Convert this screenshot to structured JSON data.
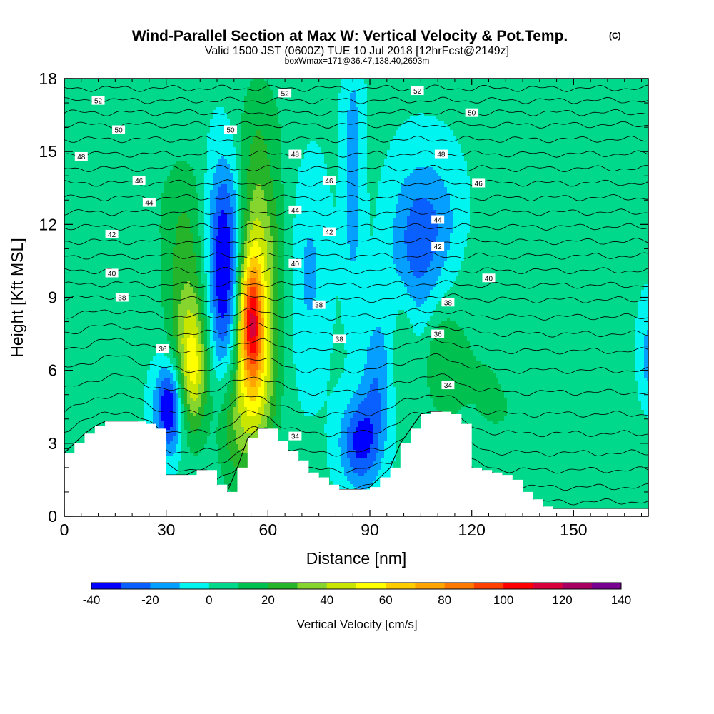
{
  "figure": {
    "title": "Wind-Parallel Section at Max W: Vertical Velocity & Pot.Temp.",
    "title_mark": "(C)",
    "subtitle": "Valid 1500 JST (0600Z) TUE 10 Jul 2018 [12hrFcst@2149z]",
    "subtitle2": "boxWmax=171@36.47,138.40,2693m"
  },
  "colors": {
    "background": "#ffffff",
    "terrain": "#ffffff",
    "contour": "#000000",
    "palette": [
      "#0000ff",
      "#0a5fff",
      "#05a0ff",
      "#00f4f0",
      "#00d88c",
      "#00c050",
      "#26b42a",
      "#86d42e",
      "#c8e600",
      "#ffff00",
      "#ffcc00",
      "#ffa500",
      "#ff7800",
      "#ff4000",
      "#ff0000",
      "#d8003a",
      "#a80060",
      "#780090"
    ]
  },
  "chart_data": {
    "type": "heatmap",
    "xlabel": "Distance [nm]",
    "ylabel": "Height [Kft MSL]",
    "xlim": [
      0,
      172
    ],
    "ylim": [
      0,
      18
    ],
    "xticks": [
      0,
      30,
      60,
      90,
      120,
      150
    ],
    "yticks": [
      0,
      3,
      6,
      9,
      12,
      15,
      18
    ],
    "fill_variable": "Vertical Velocity [cm/s]",
    "contour_variable": "Potential temperature",
    "colorbar": {
      "title": "Vertical Velocity [cm/s]",
      "levels": [
        -40,
        -30,
        -20,
        -10,
        0,
        10,
        20,
        30,
        40,
        50,
        60,
        70,
        80,
        90,
        100,
        110,
        120,
        130,
        140
      ],
      "tick_labels": [
        "-40",
        "-20",
        "0",
        "20",
        "40",
        "60",
        "80",
        "100",
        "120",
        "140"
      ],
      "tick_values": [
        -40,
        -20,
        0,
        20,
        40,
        60,
        80,
        100,
        120,
        140
      ]
    },
    "background_velocity": 2,
    "velocity_cells": [
      {
        "x": 36,
        "y": 8,
        "sx": 4.5,
        "sy": 2.8,
        "v": 24
      },
      {
        "x": 38,
        "y": 6,
        "sx": 3,
        "sy": 1.8,
        "v": 38
      },
      {
        "x": 35,
        "y": 12.5,
        "sx": 6,
        "sy": 2,
        "v": 12
      },
      {
        "x": 31,
        "y": 4.5,
        "sx": 3,
        "sy": 1.3,
        "v": -48
      },
      {
        "x": 47,
        "y": 9.5,
        "sx": 3.5,
        "sy": 3,
        "v": -42
      },
      {
        "x": 48,
        "y": 12.5,
        "sx": 5,
        "sy": 2,
        "v": -12
      },
      {
        "x": 56,
        "y": 9,
        "sx": 4,
        "sy": 4.2,
        "v": 48
      },
      {
        "x": 55,
        "y": 8,
        "sx": 2.3,
        "sy": 1.6,
        "v": 60
      },
      {
        "x": 58,
        "y": 5.5,
        "sx": 4,
        "sy": 2,
        "v": 18
      },
      {
        "x": 50,
        "y": 4,
        "sx": 4,
        "sy": 2,
        "v": 24
      },
      {
        "x": 62,
        "y": 11,
        "sx": 4,
        "sy": 2,
        "v": 10
      },
      {
        "x": 72,
        "y": 10,
        "sx": 4,
        "sy": 3,
        "v": -14
      },
      {
        "x": 85,
        "y": 14,
        "sx": 2,
        "sy": 3.5,
        "v": -20
      },
      {
        "x": 87,
        "y": 3,
        "sx": 4,
        "sy": 1.3,
        "v": -35
      },
      {
        "x": 92,
        "y": 5.5,
        "sx": 3,
        "sy": 2,
        "v": -20
      },
      {
        "x": 100,
        "y": 7.5,
        "sx": 2.5,
        "sy": 2,
        "v": 14
      },
      {
        "x": 102,
        "y": 10.5,
        "sx": 5,
        "sy": 2.5,
        "v": -20
      },
      {
        "x": 109,
        "y": 12,
        "sx": 6,
        "sy": 2,
        "v": -18
      },
      {
        "x": 111,
        "y": 6.5,
        "sx": 4,
        "sy": 1.5,
        "v": 16
      },
      {
        "x": 123,
        "y": 8,
        "sx": 8,
        "sy": 3,
        "v": 6
      },
      {
        "x": 130,
        "y": 4,
        "sx": 14,
        "sy": 2,
        "v": 6
      },
      {
        "x": 158,
        "y": 2.5,
        "sx": 12,
        "sy": 2,
        "v": 5
      },
      {
        "x": 150,
        "y": 13,
        "sx": 6,
        "sy": 4,
        "v": 6
      },
      {
        "x": 60,
        "y": 16,
        "sx": 6,
        "sy": 2,
        "v": 7
      },
      {
        "x": 172,
        "y": 6.5,
        "sx": 2,
        "sy": 1.5,
        "v": -16
      }
    ],
    "terrain": {
      "x": [
        0,
        3,
        6,
        9,
        12,
        15,
        18,
        21,
        24,
        27,
        30,
        33,
        36,
        39,
        42,
        45,
        48,
        51,
        54,
        57,
        60,
        63,
        66,
        69,
        72,
        75,
        78,
        81,
        84,
        87,
        90,
        93,
        96,
        99,
        102,
        105,
        108,
        111,
        114,
        117,
        120,
        123,
        126,
        129,
        132,
        135,
        138,
        141,
        144,
        147,
        150,
        153,
        156,
        159,
        162,
        165,
        168,
        172
      ],
      "height": [
        2.6,
        3.0,
        3.4,
        3.7,
        3.9,
        3.9,
        3.9,
        3.9,
        3.8,
        3.6,
        1.7,
        1.7,
        1.7,
        1.9,
        1.9,
        1.3,
        1.0,
        2.0,
        3.2,
        3.6,
        3.6,
        3.1,
        2.7,
        2.3,
        1.8,
        1.6,
        1.3,
        1.1,
        1.1,
        1.1,
        1.2,
        1.6,
        2.0,
        3.0,
        3.6,
        4.2,
        4.3,
        4.3,
        4.2,
        3.8,
        2.0,
        1.9,
        1.8,
        1.7,
        1.5,
        1.0,
        0.7,
        0.4,
        0.3,
        0.3,
        0.3,
        0.3,
        0.3,
        0.3,
        0.3,
        0.3,
        0.3,
        0.3
      ]
    },
    "isentropes": [
      {
        "base": 0.0
      },
      {
        "base": 0.6
      },
      {
        "base": 1.2
      },
      {
        "base": 1.9
      },
      {
        "base": 2.6
      },
      {
        "base": 3.4
      },
      {
        "base": 4.2,
        "label": "34"
      },
      {
        "base": 5.1
      },
      {
        "base": 6.0,
        "label": "36"
      },
      {
        "base": 6.8
      },
      {
        "base": 7.5,
        "label": "38"
      },
      {
        "base": 8.2
      },
      {
        "base": 8.9,
        "label": "38"
      },
      {
        "base": 9.5
      },
      {
        "base": 10.1,
        "label": "40"
      },
      {
        "base": 10.7
      },
      {
        "base": 11.3,
        "label": "42"
      },
      {
        "base": 11.9
      },
      {
        "base": 12.5,
        "label": "44"
      },
      {
        "base": 13.1
      },
      {
        "base": 13.7,
        "label": "46"
      },
      {
        "base": 14.3
      },
      {
        "base": 14.9,
        "label": "48"
      },
      {
        "base": 15.5
      },
      {
        "base": 16.1,
        "label": "50"
      },
      {
        "base": 16.6
      },
      {
        "base": 17.1,
        "label": "52"
      },
      {
        "base": 17.6
      }
    ],
    "contour_labels": [
      {
        "x": 10,
        "y": 17.1,
        "text": "52"
      },
      {
        "x": 65,
        "y": 17.4,
        "text": "52"
      },
      {
        "x": 104,
        "y": 17.5,
        "text": "52"
      },
      {
        "x": 16,
        "y": 15.9,
        "text": "50"
      },
      {
        "x": 49,
        "y": 15.9,
        "text": "50"
      },
      {
        "x": 120,
        "y": 16.6,
        "text": "50"
      },
      {
        "x": 5,
        "y": 14.8,
        "text": "48"
      },
      {
        "x": 68,
        "y": 14.9,
        "text": "48"
      },
      {
        "x": 111,
        "y": 14.9,
        "text": "48"
      },
      {
        "x": 22,
        "y": 13.8,
        "text": "46"
      },
      {
        "x": 78,
        "y": 13.8,
        "text": "46"
      },
      {
        "x": 122,
        "y": 13.7,
        "text": "46"
      },
      {
        "x": 25,
        "y": 12.9,
        "text": "44"
      },
      {
        "x": 68,
        "y": 12.6,
        "text": "44"
      },
      {
        "x": 110,
        "y": 12.2,
        "text": "44"
      },
      {
        "x": 14,
        "y": 11.6,
        "text": "42"
      },
      {
        "x": 78,
        "y": 11.7,
        "text": "42"
      },
      {
        "x": 110,
        "y": 11.1,
        "text": "42"
      },
      {
        "x": 14,
        "y": 10.0,
        "text": "40"
      },
      {
        "x": 68,
        "y": 10.4,
        "text": "40"
      },
      {
        "x": 125,
        "y": 9.8,
        "text": "40"
      },
      {
        "x": 17,
        "y": 9.0,
        "text": "38"
      },
      {
        "x": 75,
        "y": 8.7,
        "text": "38"
      },
      {
        "x": 113,
        "y": 8.8,
        "text": "38"
      },
      {
        "x": 81,
        "y": 7.3,
        "text": "38"
      },
      {
        "x": 29,
        "y": 6.9,
        "text": "36"
      },
      {
        "x": 110,
        "y": 7.5,
        "text": "36"
      },
      {
        "x": 113,
        "y": 5.4,
        "text": "34"
      },
      {
        "x": 68,
        "y": 3.3,
        "text": "34"
      }
    ]
  }
}
